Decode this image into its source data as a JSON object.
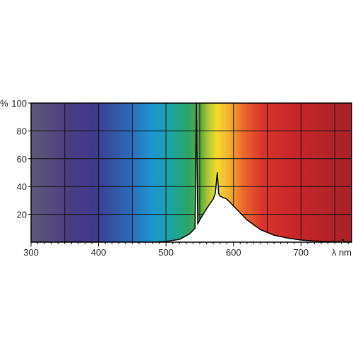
{
  "chart_data": {
    "type": "area",
    "title": "",
    "xlabel": "λ nm",
    "ylabel": "%",
    "xlim": [
      300,
      775
    ],
    "ylim": [
      0,
      100
    ],
    "xticks": [
      300,
      400,
      500,
      600,
      700
    ],
    "xtick_labels": [
      "300",
      "400",
      "500",
      "600",
      "700"
    ],
    "yticks": [
      20,
      40,
      60,
      80,
      100
    ],
    "ytick_labels": [
      "20",
      "40",
      "60",
      "80",
      "100"
    ],
    "grid": true,
    "background": "visible spectrum colour gradient",
    "series": [
      {
        "x": [
          300,
          480,
          500,
          520,
          535,
          543,
          545,
          547,
          550,
          560,
          570,
          573,
          576,
          578,
          580,
          590,
          600,
          620,
          640,
          660,
          680,
          700,
          720,
          740,
          760,
          762,
          764,
          775
        ],
        "y": [
          0,
          0,
          0.5,
          2,
          6,
          10,
          100,
          13,
          16,
          24,
          31,
          35,
          50,
          35,
          33,
          31,
          26,
          16,
          9,
          5,
          3,
          1.5,
          0.8,
          0.4,
          0.2,
          2,
          0.2,
          0.1
        ]
      }
    ]
  },
  "colors": {
    "spectrum_stops": [
      "#5e5a78",
      "#4b3c80",
      "#3f3a8e",
      "#2e67b3",
      "#1f95d2",
      "#1aa4a6",
      "#2aa56a",
      "#5cae3c",
      "#a9c43a",
      "#f2dc2e",
      "#f4ad2e",
      "#ec6b2c",
      "#d9352c",
      "#c8262a",
      "#a82126"
    ],
    "spectrum_offsets": [
      0,
      0.12,
      0.2,
      0.3,
      0.38,
      0.43,
      0.49,
      0.53,
      0.55,
      0.58,
      0.62,
      0.66,
      0.72,
      0.82,
      1
    ],
    "curve_fill": "#ffffff",
    "curve_stroke": "#000000",
    "grid": "#111111",
    "frame": "#000000"
  }
}
